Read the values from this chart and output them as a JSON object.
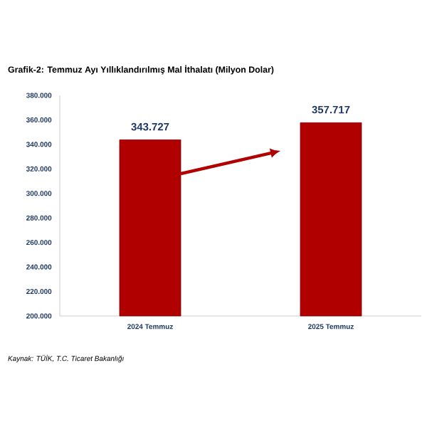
{
  "chart_data": {
    "type": "bar",
    "title": "Grafik-2: Temmuz Ayı Yıllıklandırılmış Mal İthalatı (Milyon Dolar)",
    "categories": [
      "2024 Temmuz",
      "2025 Temmuz"
    ],
    "values": [
      343727,
      357717
    ],
    "value_labels": [
      "343.727",
      "357.717"
    ],
    "color": "#b00000",
    "ylim": [
      200000,
      380000
    ],
    "yticks": [
      {
        "value": 200000,
        "label": "200.000"
      },
      {
        "value": 220000,
        "label": "220.000"
      },
      {
        "value": 240000,
        "label": "240.000"
      },
      {
        "value": 260000,
        "label": "260.000"
      },
      {
        "value": 280000,
        "label": "280.000"
      },
      {
        "value": 300000,
        "label": "300.000"
      },
      {
        "value": 320000,
        "label": "320.000"
      },
      {
        "value": 340000,
        "label": "340.000"
      },
      {
        "value": 360000,
        "label": "360.000"
      },
      {
        "value": 380000,
        "label": "380.000"
      }
    ],
    "grid": false,
    "annotations": [
      "Kaynak: TÜİK, T.C. Ticaret Bakanlığı"
    ]
  }
}
